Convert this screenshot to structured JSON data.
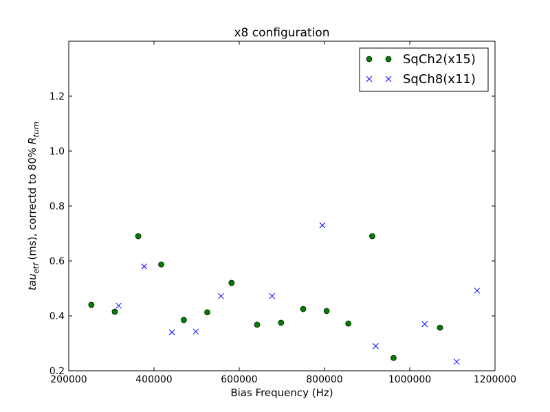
{
  "chart_data": {
    "type": "scatter",
    "title": "x8 configuration",
    "xlabel": "Bias Frequency (Hz)",
    "ylabel": "tau_etf (ms), correctd to 80% R_turn",
    "xlim": [
      200000,
      1200000
    ],
    "ylim": [
      0.2,
      1.4
    ],
    "xticks": [
      200000,
      400000,
      600000,
      800000,
      1000000,
      1200000
    ],
    "xtick_labels": [
      "200000",
      "400000",
      "600000",
      "800000",
      "1000000",
      "1200000"
    ],
    "yticks": [
      0.2,
      0.4,
      0.6,
      0.8,
      1.0,
      1.2
    ],
    "ytick_labels": [
      "0.2",
      "0.4",
      "0.6",
      "0.8",
      "1.0",
      "1.2"
    ],
    "grid": false,
    "legend_position": "top-right",
    "series": [
      {
        "name": "SqCh2(x15)",
        "marker": "circle",
        "color": "#007f00",
        "points": [
          [
            253000,
            0.44
          ],
          [
            308000,
            0.415
          ],
          [
            363000,
            0.69
          ],
          [
            417000,
            0.587
          ],
          [
            470000,
            0.385
          ],
          [
            525000,
            0.413
          ],
          [
            582000,
            0.52
          ],
          [
            642000,
            0.368
          ],
          [
            698000,
            0.375
          ],
          [
            750000,
            0.425
          ],
          [
            805000,
            0.418
          ],
          [
            856000,
            0.372
          ],
          [
            912000,
            0.69
          ],
          [
            962000,
            0.247
          ],
          [
            1071000,
            0.357
          ]
        ]
      },
      {
        "name": "SqCh8(x11)",
        "marker": "x",
        "color": "#0000ff",
        "points": [
          [
            317000,
            0.437
          ],
          [
            377000,
            0.58
          ],
          [
            442000,
            0.34
          ],
          [
            498000,
            0.343
          ],
          [
            557000,
            0.472
          ],
          [
            677000,
            0.472
          ],
          [
            795000,
            0.73
          ],
          [
            920000,
            0.29
          ],
          [
            1035000,
            0.37
          ],
          [
            1110000,
            0.233
          ],
          [
            1158000,
            0.492
          ]
        ]
      }
    ]
  }
}
